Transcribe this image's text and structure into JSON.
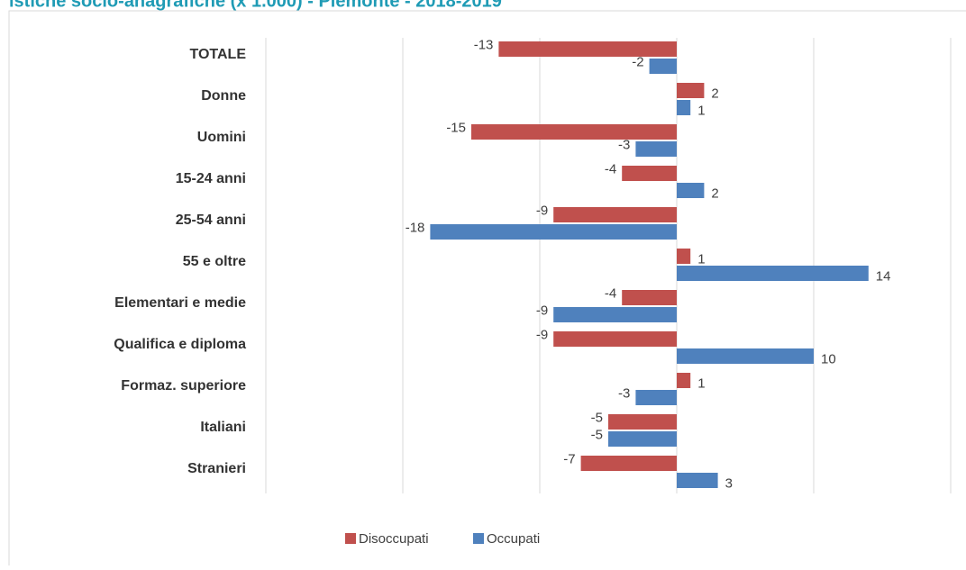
{
  "chart_data": {
    "type": "bar",
    "orientation": "horizontal",
    "title": "istiche socio-anagrafiche (x 1.000) - Piemonte - 2018-2019",
    "categories": [
      "TOTALE",
      "Donne",
      "Uomini",
      "15-24 anni",
      "25-54 anni",
      "55 e oltre",
      "Elementari e medie",
      "Qualifica e diploma",
      "Formaz. superiore",
      "Italiani",
      "Stranieri"
    ],
    "series": [
      {
        "name": "Disoccupati",
        "color": "#c0504d",
        "values": [
          -13,
          2,
          -15,
          -4,
          -9,
          1,
          -4,
          -9,
          1,
          -5,
          -7
        ]
      },
      {
        "name": "Occupati",
        "color": "#4f81bd",
        "values": [
          -2,
          1,
          -3,
          2,
          -18,
          14,
          -9,
          10,
          -3,
          -5,
          3
        ]
      }
    ],
    "xlim": [
      -30,
      20
    ],
    "xticks": [
      -30,
      -20,
      -10,
      0,
      10,
      20
    ],
    "grid": true,
    "legend": "bottom"
  }
}
